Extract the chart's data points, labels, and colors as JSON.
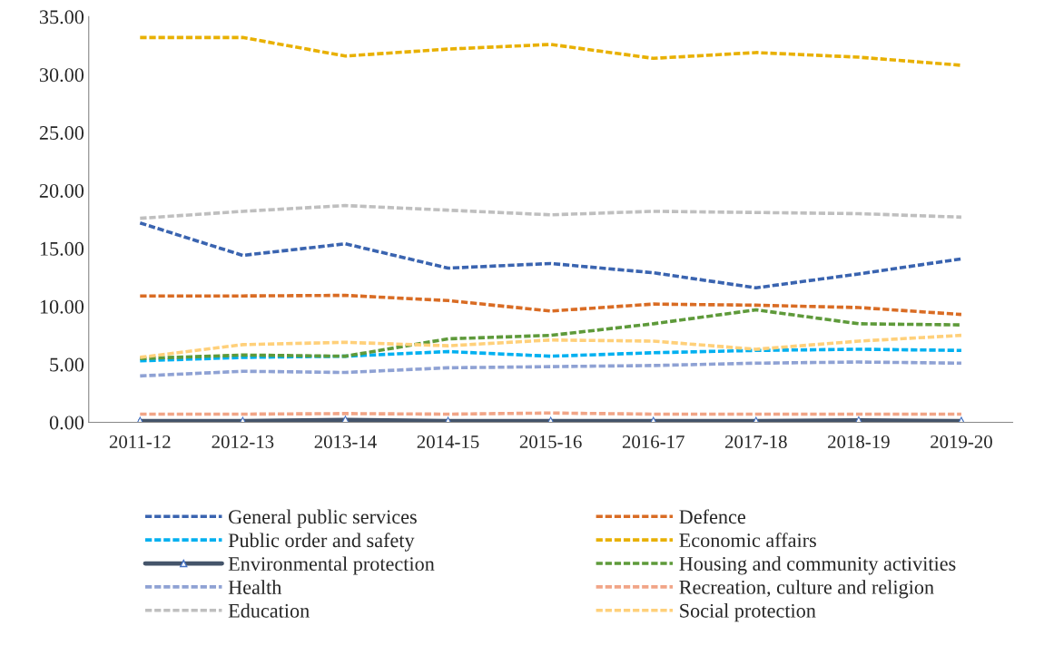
{
  "chart_data": {
    "type": "line",
    "categories": [
      "2011-12",
      "2012-13",
      "2013-14",
      "2014-15",
      "2015-16",
      "2016-17",
      "2017-18",
      "2018-19",
      "2019-20"
    ],
    "ylim": [
      0,
      35
    ],
    "yticks": [
      {
        "value": 0,
        "label": "0.00"
      },
      {
        "value": 5,
        "label": "5.00"
      },
      {
        "value": 10,
        "label": "10.00"
      },
      {
        "value": 15,
        "label": "15.00"
      },
      {
        "value": 20,
        "label": "20.00"
      },
      {
        "value": 25,
        "label": "25.00"
      },
      {
        "value": 30,
        "label": "30.00"
      },
      {
        "value": 35,
        "label": "35.00"
      }
    ],
    "grid": false,
    "legend": "bottom",
    "line_style": "dashed",
    "marker": "none",
    "series": [
      {
        "name": "General public services",
        "color": "#3a64b0",
        "values": [
          17.2,
          14.4,
          15.4,
          13.3,
          13.7,
          12.9,
          11.6,
          12.8,
          14.1
        ]
      },
      {
        "name": "Defence",
        "color": "#d96c24",
        "values": [
          10.9,
          10.9,
          10.95,
          10.5,
          9.6,
          10.2,
          10.1,
          9.9,
          9.3
        ]
      },
      {
        "name": "Public order and safety",
        "color": "#00b0f0",
        "values": [
          5.3,
          5.6,
          5.7,
          6.1,
          5.7,
          6.0,
          6.2,
          6.3,
          6.2
        ]
      },
      {
        "name": "Economic affairs",
        "color": "#e8b000",
        "values": [
          33.2,
          33.2,
          31.6,
          32.2,
          32.6,
          31.4,
          31.9,
          31.5,
          30.8
        ]
      },
      {
        "name": "Environmental protection",
        "color": "#44546a",
        "line_style": "solid",
        "marker": "triangle",
        "values": [
          0.1,
          0.1,
          0.2,
          0.1,
          0.1,
          0.1,
          0.1,
          0.15,
          0.1
        ]
      },
      {
        "name": "Housing and community activities",
        "color": "#5e9a3a",
        "values": [
          5.5,
          5.8,
          5.7,
          7.2,
          7.5,
          8.5,
          9.7,
          8.5,
          8.4
        ]
      },
      {
        "name": "Health",
        "color": "#8fa2d4",
        "values": [
          4.0,
          4.4,
          4.3,
          4.7,
          4.8,
          4.9,
          5.1,
          5.2,
          5.1
        ]
      },
      {
        "name": "Recreation, culture and religion",
        "color": "#f1a587",
        "values": [
          0.7,
          0.7,
          0.75,
          0.7,
          0.8,
          0.7,
          0.7,
          0.7,
          0.7
        ]
      },
      {
        "name": "Education",
        "color": "#bfbfbf",
        "values": [
          17.6,
          18.2,
          18.7,
          18.3,
          17.9,
          18.2,
          18.1,
          18.0,
          17.7
        ]
      },
      {
        "name": "Social protection",
        "color": "#ffd07a",
        "values": [
          5.6,
          6.7,
          6.9,
          6.6,
          7.1,
          7.0,
          6.3,
          7.0,
          7.5
        ]
      }
    ]
  }
}
